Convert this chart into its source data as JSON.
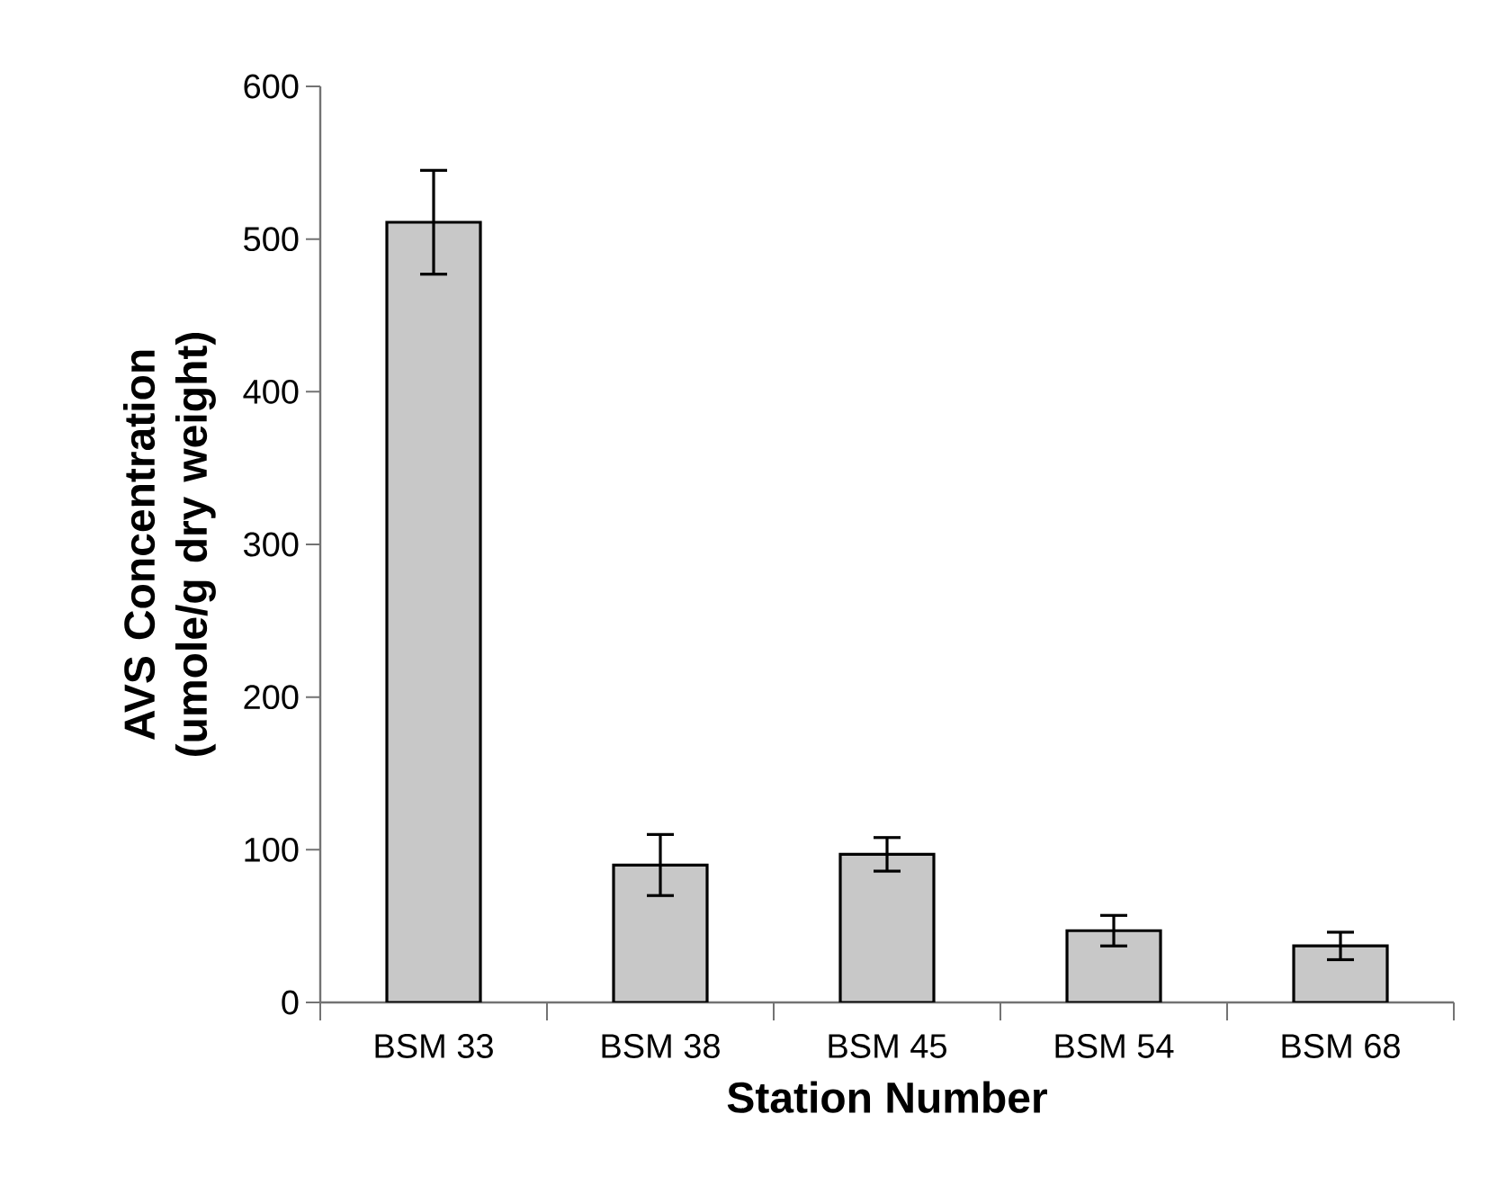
{
  "chart_data": {
    "type": "bar",
    "xlabel": "Station Number",
    "ylabel": "AVS Concentration (umole/g dry weight)",
    "categories": [
      "BSM 33",
      "BSM 38",
      "BSM 45",
      "BSM 54",
      "BSM 68"
    ],
    "values": [
      511,
      90,
      97,
      47,
      37
    ],
    "errors": [
      34,
      20,
      11,
      10,
      9
    ],
    "color": "#c8c8c8",
    "ylim": [
      0,
      600
    ],
    "yticks": [
      0,
      100,
      200,
      300,
      400,
      500,
      600
    ],
    "grid": false
  }
}
